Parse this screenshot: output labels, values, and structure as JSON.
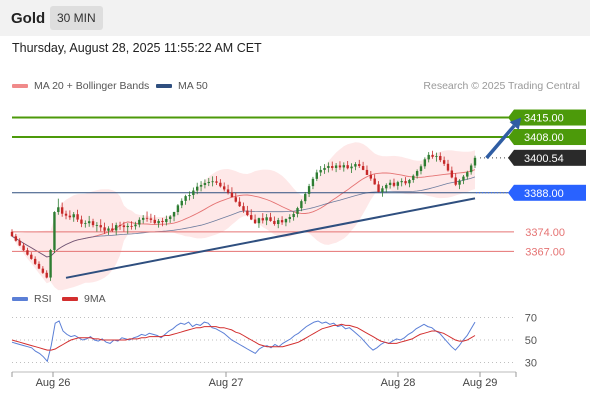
{
  "header": {
    "symbol": "Gold",
    "timeframe": "30 MIN"
  },
  "datetime": "Thursday, August 28, 2025 11:55:22 AM CET",
  "legend": {
    "ma20_bb": "MA 20 + Bollinger Bands",
    "ma50": "MA 50",
    "source": "Research © 2025 Trading Central"
  },
  "colors": {
    "up": "#2e7d32",
    "down": "#c62828",
    "bb_fill": "#fde0e0",
    "ma20": "#e57373",
    "ma50": "#2f4f7f",
    "resistance": "#4c9a0a",
    "support": "#2962ff",
    "level": "#e57373",
    "rsi": "#5b7fd6",
    "rsi_ma": "#d32f2f"
  },
  "chart_data": [
    {
      "type": "candlestick",
      "title": "Gold 30 MIN",
      "x_tick_labels": [
        "Aug 26",
        "Aug 27",
        "Aug 28",
        "Aug 29"
      ],
      "ylim": [
        3356,
        3422
      ],
      "current_price": 3400.54,
      "levels": [
        {
          "value": 3415.0,
          "label": "3415.00",
          "kind": "resistance"
        },
        {
          "value": 3408.0,
          "label": "3408.00",
          "kind": "resistance"
        },
        {
          "value": 3400.54,
          "label": "3400.54",
          "kind": "last"
        },
        {
          "value": 3388.0,
          "label": "3388.00",
          "kind": "support"
        },
        {
          "value": 3374.0,
          "label": "3374.00",
          "kind": "level"
        },
        {
          "value": 3367.0,
          "label": "3367.00",
          "kind": "level"
        }
      ],
      "trendline": {
        "from": {
          "bar": 14,
          "price": 3357.5
        },
        "to": {
          "bar": 120,
          "price": 3386
        }
      },
      "projection_arrow": {
        "from": {
          "bar": 123,
          "price": 3400.5
        },
        "to": {
          "bar": 132,
          "price": 3415
        }
      },
      "candles": [
        [
          3374,
          3374.9,
          3372.3,
          3372.4
        ],
        [
          3372.4,
          3373.3,
          3370.5,
          3370.8
        ],
        [
          3370.8,
          3371.7,
          3368.9,
          3369.1
        ],
        [
          3369.1,
          3370,
          3367.1,
          3367.4
        ],
        [
          3367.4,
          3368.3,
          3365.5,
          3365.8
        ],
        [
          3365.8,
          3366.7,
          3364,
          3364.3
        ],
        [
          3364.3,
          3365.2,
          3362.1,
          3362.5
        ],
        [
          3362.5,
          3363.4,
          3360.6,
          3360.8
        ],
        [
          3360.8,
          3361.7,
          3358.9,
          3359.3
        ],
        [
          3359.3,
          3360.2,
          3357.3,
          3357.6
        ],
        [
          3357.6,
          3367.9,
          3356.4,
          3367.5
        ],
        [
          3367.5,
          3381.4,
          3366.4,
          3381.1
        ],
        [
          3381.1,
          3385.9,
          3380.1,
          3382.8
        ],
        [
          3382.8,
          3384.5,
          3379.4,
          3380.5
        ],
        [
          3380.5,
          3381.6,
          3378.5,
          3379.8
        ],
        [
          3379.8,
          3381.7,
          3378.3,
          3379.2
        ],
        [
          3379.2,
          3381.1,
          3377.6,
          3380.3
        ],
        [
          3380.3,
          3381.9,
          3377.5,
          3378.4
        ],
        [
          3378.4,
          3379.8,
          3375.7,
          3376.9
        ],
        [
          3376.9,
          3378.1,
          3375.5,
          3377.1
        ],
        [
          3377.1,
          3379.7,
          3375.8,
          3377.8
        ],
        [
          3377.8,
          3378.7,
          3375.6,
          3376.4
        ],
        [
          3376.4,
          3377.5,
          3374.1,
          3376.4
        ],
        [
          3376.4,
          3378.5,
          3374.2,
          3375.6
        ],
        [
          3375.6,
          3377.3,
          3373.3,
          3374.4
        ],
        [
          3374.4,
          3376,
          3372.9,
          3375.2
        ],
        [
          3375.2,
          3377.1,
          3373.9,
          3374.5
        ],
        [
          3374.5,
          3377.3,
          3372.8,
          3376.4
        ],
        [
          3376.4,
          3377.6,
          3374.7,
          3376.3
        ],
        [
          3376.3,
          3377.6,
          3374.1,
          3375.7
        ],
        [
          3375.7,
          3377.1,
          3373.3,
          3376.1
        ],
        [
          3376.1,
          3377.8,
          3374.8,
          3376
        ],
        [
          3376,
          3377.6,
          3374.8,
          3376.6
        ],
        [
          3376.6,
          3379.2,
          3375.6,
          3378.3
        ],
        [
          3378.3,
          3380,
          3377,
          3379
        ],
        [
          3379,
          3381.3,
          3377.6,
          3378.8
        ],
        [
          3378.8,
          3380.5,
          3377.2,
          3378.3
        ],
        [
          3378.3,
          3380,
          3376.7,
          3377.1
        ],
        [
          3377.1,
          3378.6,
          3375.5,
          3377.9
        ],
        [
          3377.9,
          3379,
          3376,
          3377.5
        ],
        [
          3377.5,
          3379.8,
          3376.3,
          3378.6
        ],
        [
          3378.6,
          3380,
          3377.2,
          3379.5
        ],
        [
          3379.5,
          3381.2,
          3377.8,
          3381.1
        ],
        [
          3381.1,
          3384,
          3380,
          3383.5
        ],
        [
          3383.5,
          3386,
          3382.5,
          3385.1
        ],
        [
          3385.1,
          3387.3,
          3383.7,
          3386.8
        ],
        [
          3386.8,
          3388.5,
          3385.3,
          3387.2
        ],
        [
          3387.2,
          3389.9,
          3385.8,
          3388.8
        ],
        [
          3388.8,
          3391.6,
          3387.5,
          3390.2
        ],
        [
          3390.2,
          3392.2,
          3388.5,
          3390.8
        ],
        [
          3390.8,
          3392.8,
          3389.6,
          3391.5
        ],
        [
          3391.5,
          3393.3,
          3390.4,
          3391.9
        ],
        [
          3391.9,
          3393.9,
          3390.3,
          3392.1
        ],
        [
          3392.1,
          3394,
          3390.8,
          3391.6
        ],
        [
          3391.6,
          3392.9,
          3389.9,
          3390.3
        ],
        [
          3390.3,
          3391.7,
          3388.5,
          3389.2
        ],
        [
          3389.2,
          3390.9,
          3387.4,
          3388.1
        ],
        [
          3388.1,
          3390,
          3386.5,
          3386.4
        ],
        [
          3386.4,
          3388,
          3384.5,
          3384.8
        ],
        [
          3384.8,
          3386.4,
          3382.9,
          3383.2
        ],
        [
          3383.2,
          3384.5,
          3380.8,
          3381.6
        ],
        [
          3381.6,
          3383.3,
          3379.6,
          3380
        ],
        [
          3380,
          3382.1,
          3378.2,
          3378.4
        ],
        [
          3378.4,
          3380.2,
          3376.8,
          3377.1
        ],
        [
          3377.1,
          3379.1,
          3375.4,
          3378.9
        ],
        [
          3378.9,
          3380.7,
          3377,
          3378.1
        ],
        [
          3378.1,
          3380.4,
          3376.4,
          3379.2
        ],
        [
          3379.2,
          3380.8,
          3377.6,
          3377.9
        ],
        [
          3377.9,
          3379.5,
          3376.2,
          3376.8
        ],
        [
          3376.8,
          3379,
          3375.3,
          3378.2
        ],
        [
          3378.2,
          3379.6,
          3376.5,
          3377.4
        ],
        [
          3377.4,
          3378.8,
          3376,
          3378.6
        ],
        [
          3378.6,
          3380.3,
          3377.3,
          3379.3
        ],
        [
          3379.3,
          3381.2,
          3378,
          3380.4
        ],
        [
          3380.4,
          3383,
          3379.2,
          3382.5
        ],
        [
          3382.5,
          3385.6,
          3381.4,
          3385
        ],
        [
          3385,
          3388.3,
          3384,
          3387.6
        ],
        [
          3387.6,
          3391.2,
          3386.5,
          3390.4
        ],
        [
          3390.4,
          3393.7,
          3389.3,
          3393
        ],
        [
          3393,
          3396.3,
          3392.2,
          3395.3
        ],
        [
          3395.3,
          3397.6,
          3394,
          3396.2
        ],
        [
          3396.2,
          3398.3,
          3394.8,
          3396.9
        ],
        [
          3396.9,
          3398.9,
          3395.3,
          3397.6
        ],
        [
          3397.6,
          3399.2,
          3396,
          3396.9
        ],
        [
          3396.9,
          3398.7,
          3395.4,
          3397.8
        ],
        [
          3397.8,
          3399.3,
          3396.2,
          3397.1
        ],
        [
          3397.1,
          3398.9,
          3395.6,
          3397.9
        ],
        [
          3397.9,
          3399.4,
          3396.4,
          3396.8
        ],
        [
          3396.8,
          3398.6,
          3395.1,
          3397.4
        ],
        [
          3397.4,
          3399,
          3396.1,
          3398.3
        ],
        [
          3398.3,
          3399.8,
          3396.9,
          3397.6
        ],
        [
          3397.6,
          3399.1,
          3396.1,
          3396.2
        ],
        [
          3396.2,
          3397.8,
          3394.4,
          3394.4
        ],
        [
          3394.4,
          3395.8,
          3392.3,
          3393.1
        ],
        [
          3393.1,
          3394.6,
          3390.9,
          3391
        ],
        [
          3391,
          3392.2,
          3388.2,
          3388.3
        ],
        [
          3388.3,
          3390.5,
          3386.6,
          3389.6
        ],
        [
          3389.6,
          3391.4,
          3388.2,
          3390.8
        ],
        [
          3390.8,
          3392.7,
          3389.5,
          3391.6
        ],
        [
          3391.6,
          3393.1,
          3390,
          3390.5
        ],
        [
          3390.5,
          3392.3,
          3389.1,
          3391.8
        ],
        [
          3391.8,
          3393.2,
          3390.3,
          3392.2
        ],
        [
          3392.2,
          3393.6,
          3390.7,
          3391.4
        ],
        [
          3391.4,
          3393,
          3390,
          3392.6
        ],
        [
          3392.6,
          3394.6,
          3391.6,
          3394.1
        ],
        [
          3394.1,
          3396.4,
          3393.1,
          3395.8
        ],
        [
          3395.8,
          3398.2,
          3394.6,
          3397.5
        ],
        [
          3397.5,
          3400.7,
          3396.6,
          3400
        ],
        [
          3400,
          3402.6,
          3398.9,
          3401.6
        ],
        [
          3401.6,
          3403.1,
          3400.2,
          3400.9
        ],
        [
          3400.9,
          3402.4,
          3399.2,
          3401.2
        ],
        [
          3401.2,
          3402.5,
          3399,
          3399.7
        ],
        [
          3399.7,
          3401,
          3397.6,
          3398.4
        ],
        [
          3398.4,
          3399.8,
          3395.6,
          3396
        ],
        [
          3396,
          3397.4,
          3393.2,
          3393.5
        ],
        [
          3393.5,
          3395,
          3390.4,
          3390.9
        ],
        [
          3390.9,
          3392.9,
          3389.3,
          3392.4
        ],
        [
          3392.4,
          3394.4,
          3391.1,
          3393.8
        ],
        [
          3393.8,
          3395.9,
          3392.7,
          3395.4
        ],
        [
          3395.4,
          3398.5,
          3394.5,
          3397.8
        ],
        [
          3397.8,
          3401.3,
          3396.9,
          3400.54
        ]
      ]
    },
    {
      "type": "line",
      "title": "RSI",
      "series": [
        {
          "name": "RSI"
        },
        {
          "name": "9MA"
        }
      ],
      "ylim": [
        25,
        75
      ],
      "y_ticks": [
        70,
        50,
        30
      ],
      "rsi_values": [
        48,
        47,
        46,
        45,
        44,
        43,
        40,
        38,
        35,
        31,
        45,
        65,
        67,
        58,
        55,
        53,
        54,
        52,
        50,
        51,
        53,
        50,
        49,
        51,
        48,
        47,
        50,
        49,
        52,
        51,
        50,
        52,
        53,
        55,
        54,
        56,
        55,
        54,
        52,
        55,
        58,
        60,
        63,
        65,
        64,
        66,
        62,
        64,
        63,
        66,
        65,
        61,
        60,
        58,
        56,
        53,
        50,
        48,
        46,
        44,
        42,
        40,
        38,
        42,
        44,
        45,
        43,
        46,
        44,
        47,
        49,
        51,
        54,
        56,
        59,
        62,
        64,
        66,
        67,
        65,
        66,
        64,
        65,
        62,
        63,
        60,
        61,
        58,
        55,
        52,
        48,
        44,
        41,
        43,
        46,
        48,
        47,
        49,
        51,
        50,
        52,
        55,
        57,
        60,
        62,
        64,
        62,
        61,
        58,
        56,
        52,
        48,
        44,
        41,
        45,
        50,
        54,
        60,
        66
      ],
      "ma_values": [
        50,
        49,
        48,
        47,
        46,
        45,
        44,
        43,
        42,
        41,
        41,
        42,
        44,
        46,
        48,
        50,
        51,
        52,
        52,
        52,
        52,
        51,
        51,
        50,
        50,
        50,
        50,
        50,
        50,
        50,
        51,
        51,
        51,
        52,
        52,
        53,
        53,
        53,
        53,
        54,
        54,
        55,
        56,
        57,
        58,
        59,
        60,
        61,
        61,
        62,
        62,
        62,
        62,
        61,
        61,
        60,
        59,
        57,
        56,
        54,
        52,
        50,
        48,
        46,
        45,
        44,
        44,
        44,
        44,
        44,
        45,
        46,
        47,
        48,
        50,
        52,
        54,
        56,
        58,
        60,
        61,
        62,
        63,
        63,
        64,
        63,
        63,
        62,
        61,
        59,
        57,
        55,
        53,
        51,
        49,
        48,
        47,
        47,
        47,
        48,
        49,
        50,
        51,
        53,
        55,
        56,
        57,
        58,
        58,
        57,
        56,
        54,
        52,
        50,
        49,
        49,
        50,
        52,
        54
      ],
      "x_tick_labels": [
        "Aug 26",
        "Aug 27",
        "Aug 28",
        "Aug 29"
      ]
    }
  ]
}
